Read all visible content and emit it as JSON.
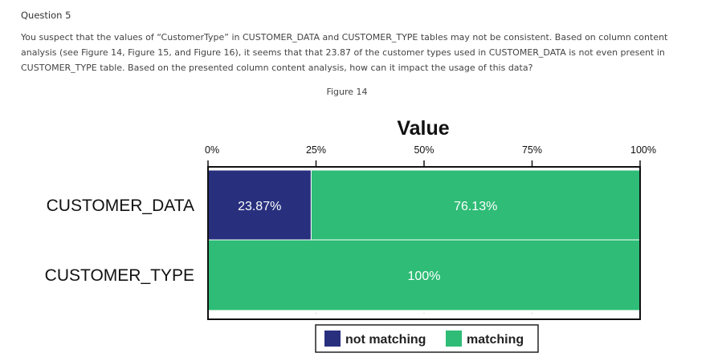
{
  "question": {
    "title": "Question 5",
    "text": "You suspect that the values of “CustomerType” in CUSTOMER_DATA and CUSTOMER_TYPE tables may not be consistent. Based on column content analysis (see Figure 14, Figure 15, and Figure 16), it seems that that 23.87 of the customer types used in CUSTOMER_DATA is not even present in CUSTOMER_TYPE table. Based on the presented column content analysis, how can it impact the usage of this data?",
    "figure_label": "Figure 14"
  },
  "chart_data": {
    "type": "bar",
    "orientation": "horizontal",
    "stacked": true,
    "title": "Value",
    "categories": [
      "CUSTOMER_DATA",
      "CUSTOMER_TYPE"
    ],
    "series": [
      {
        "name": "not matching",
        "color": "#28307e",
        "values": [
          23.87,
          0
        ],
        "labels": [
          "23.87%",
          ""
        ]
      },
      {
        "name": "matching",
        "color": "#2ebc76",
        "values": [
          76.13,
          100
        ],
        "labels": [
          "76.13%",
          "100%"
        ]
      }
    ],
    "xlim": [
      0,
      100
    ],
    "xticks": [
      0,
      25,
      50,
      75,
      100
    ],
    "xtick_labels": [
      "0%",
      "25%",
      "50%",
      "75%",
      "100%"
    ],
    "grid": false,
    "legend": "bottom"
  }
}
